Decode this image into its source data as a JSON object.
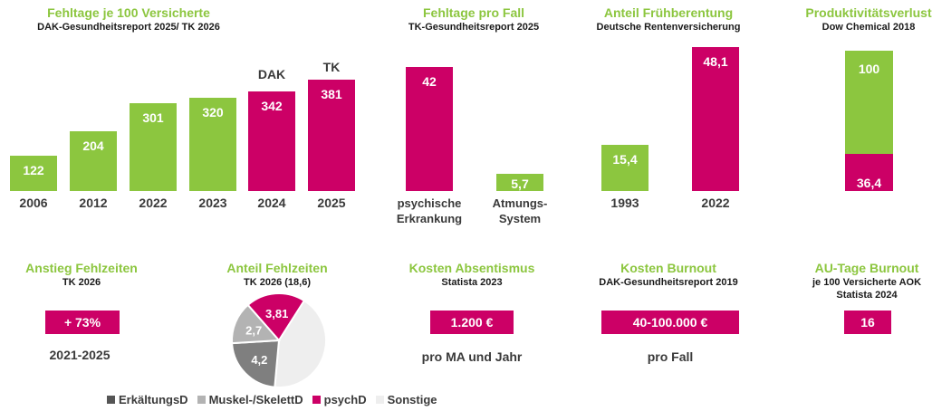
{
  "colors": {
    "green": "#8cc63f",
    "magenta": "#cc0066",
    "dark_gray": "#7f7f7f",
    "light_gray": "#b3b3b3",
    "very_light_gray": "#eeeeee"
  },
  "chart_data": [
    {
      "type": "bar",
      "title": "Fehltage je 100 Versicherte",
      "subtitle": "DAK-Gesundheitsreport 2025/ TK 2026",
      "categories": [
        "2006",
        "2012",
        "2022",
        "2023",
        "2024",
        "2025"
      ],
      "values": [
        122,
        204,
        301,
        320,
        342,
        381
      ],
      "value_labels": [
        "122",
        "204",
        "301",
        "320",
        "342",
        "381"
      ],
      "bar_colors": [
        "green",
        "green",
        "green",
        "green",
        "magenta",
        "magenta"
      ],
      "annotations": [
        "DAK",
        "TK"
      ]
    },
    {
      "type": "bar",
      "title": "Fehltage pro Fall",
      "subtitle": "TK-Gesundheitsreport 2025",
      "categories": [
        [
          "psychische",
          "Erkrankung"
        ],
        [
          "Atmungs-",
          "System"
        ]
      ],
      "values": [
        42,
        5.7
      ],
      "value_labels": [
        "42",
        "5,7"
      ],
      "bar_colors": [
        "magenta",
        "green"
      ]
    },
    {
      "type": "bar",
      "title": "Anteil Frühberentung",
      "subtitle": "Deutsche Rentenversicherung",
      "categories": [
        "1993",
        "2022"
      ],
      "values": [
        15.4,
        48.1
      ],
      "value_labels": [
        "15,4",
        "48,1"
      ],
      "bar_colors": [
        "green",
        "magenta"
      ]
    },
    {
      "type": "bar",
      "title": "Produktivitätsverlust",
      "subtitle": "Dow Chemical 2018",
      "categories": [
        ""
      ],
      "series": [
        {
          "values": [
            36.4
          ],
          "label": "36,4",
          "color": "magenta"
        },
        {
          "values": [
            100
          ],
          "label": "100",
          "color": "green"
        }
      ]
    },
    {
      "type": "pie",
      "title": "Anteil Fehlzeiten",
      "subtitle": "TK 2026 (18,6)",
      "labels": [
        "ErkältungsD",
        "Muskel-/SkelettD",
        "psychD",
        "Sonstige"
      ],
      "values": [
        4.2,
        2.7,
        3.81,
        7.89
      ],
      "value_labels": [
        "4,2",
        "2,7",
        "3,81",
        ""
      ],
      "colors": [
        "dark_gray",
        "light_gray",
        "magenta",
        "very_light_gray"
      ]
    }
  ],
  "kpis": [
    {
      "title": "Anstieg Fehlzeiten",
      "subtitle": "TK 2026",
      "value": "+ 73%",
      "caption": "2021-2025"
    },
    {
      "title": "Kosten Absentismus",
      "subtitle": "Statista 2023",
      "value": "1.200 €",
      "caption": "pro MA und Jahr"
    },
    {
      "title": "Kosten Burnout",
      "subtitle": "DAK-Gesundheitsreport 2019",
      "value": "40-100.000 €",
      "caption": "pro Fall"
    },
    {
      "title": "AU-Tage Burnout",
      "subtitle_lines": [
        "je 100 Versicherte AOK",
        "Statista 2024"
      ],
      "value": "16"
    }
  ]
}
